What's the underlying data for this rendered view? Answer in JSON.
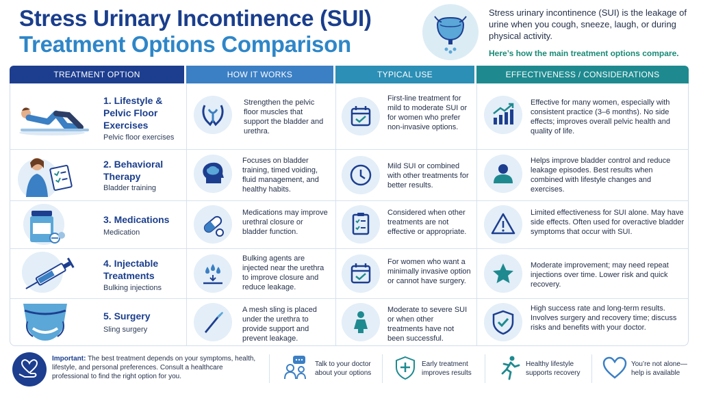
{
  "header": {
    "title_line1": "Stress Urinary Incontinence (SUI)",
    "title_line2": "Treatment Options Comparison",
    "hero_icon": "bladder-icon",
    "intro": "Stress urinary incontinence (SUI) is the leakage of urine when you cough, sneeze, laugh, or during physical activity.",
    "intro_highlight": "Here’s how the main treatment options compare."
  },
  "columns": [
    "TREATMENT OPTION",
    "HOW IT WORKS",
    "TYPICAL USE",
    "EFFECTIVENESS / CONSIDERATIONS"
  ],
  "rows": [
    {
      "name": "1. Lifestyle & Pelvic Floor Exercises",
      "name_lines": [
        "1. Lifestyle &",
        "Pelvic Floor",
        "Exercises"
      ],
      "subtitle": "Pelvic floor exercises",
      "illustration": "woman-exercising-illustration",
      "how_icon": "pelvic-muscle-icon",
      "how": "Strengthen the pelvic floor muscles that support the bladder and urethra.",
      "use_icon": "calendar-check-icon",
      "use": "First-line treatment for mild to moderate SUI or for women who prefer non-invasive options.",
      "eff_icon": "growth-chart-icon",
      "effectiveness": "Effective for many women, especially with consistent practice (3–6 months). No side effects; improves overall pelvic health and quality of life."
    },
    {
      "name": "2. Behavioral Therapy",
      "name_lines": [
        "2. Behavioral",
        "Therapy"
      ],
      "subtitle": "Bladder training",
      "illustration": "woman-clipboard-illustration",
      "how_icon": "brain-head-icon",
      "how": "Focuses on bladder training, timed voiding, fluid management, and healthy habits.",
      "use_icon": "clock-icon",
      "use": "Mild SUI or combined with other treatments for better results.",
      "eff_icon": "person-icon",
      "effectiveness": "Helps improve bladder control and reduce leakage episodes. Best results when combined with lifestyle changes and exercises."
    },
    {
      "name": "3. Medications",
      "name_lines": [
        "3. Medications"
      ],
      "subtitle": "Medication",
      "illustration": "pill-bottle-illustration",
      "how_icon": "capsule-icon",
      "how": "Medications may improve urethral closure or bladder function.",
      "use_icon": "clipboard-list-icon",
      "use": "Considered when other treatments are not effective or appropriate.",
      "eff_icon": "warning-triangle-icon",
      "effectiveness": "Limited effectiveness for SUI alone. May have side effects. Often used for overactive bladder symptoms that occur with SUI."
    },
    {
      "name": "4. Injectable Treatments",
      "name_lines": [
        "4. Injectable",
        "Treatments"
      ],
      "subtitle": "Bulking injections",
      "illustration": "syringe-illustration",
      "how_icon": "droplets-icon",
      "how": "Bulking agents are injected near the urethra to improve closure and reduce leakage.",
      "use_icon": "calendar-check-icon",
      "use": "For women who want a minimally invasive option or cannot have surgery.",
      "eff_icon": "star-icon",
      "effectiveness": "Moderate improvement; may need repeat injections over time. Lower risk and quick recovery."
    },
    {
      "name": "5. Surgery",
      "name_lines": [
        "5. Surgery"
      ],
      "subtitle": "Sling surgery",
      "illustration": "pelvis-sling-illustration",
      "how_icon": "scalpel-icon",
      "how": "A mesh sling is placed under the urethra to provide support and prevent leakage.",
      "use_icon": "woman-figure-icon",
      "use": "Moderate to severe SUI or when other treatments have not been successful.",
      "eff_icon": "shield-check-icon",
      "effectiveness": "High success rate and long-term results. Involves surgery and recovery time; discuss risks and benefits with your doctor."
    }
  ],
  "footer": {
    "important_icon": "heart-hand-icon",
    "important_label": "Important:",
    "important_text": "The best treatment depends on your symptoms, health, lifestyle, and personal preferences. Consult a healthcare professional to find the right option for you.",
    "items": [
      {
        "icon": "doctor-chat-icon",
        "line1": "Talk to your doctor",
        "line2": "about your options"
      },
      {
        "icon": "shield-plus-icon",
        "line1": "Early treatment",
        "line2": "improves results"
      },
      {
        "icon": "running-person-icon",
        "line1": "Healthy lifestyle",
        "line2": "supports recovery"
      },
      {
        "icon": "heart-outline-icon",
        "line1": "You’re not alone—",
        "line2": "help is available"
      }
    ]
  },
  "colors": {
    "navy": "#1d3e8f",
    "blue": "#3b7fc4",
    "cyan": "#2c8fb5",
    "teal": "#1e8a8f",
    "icon_bg": "#e3eef8",
    "highlight_green": "#1a8a76"
  }
}
